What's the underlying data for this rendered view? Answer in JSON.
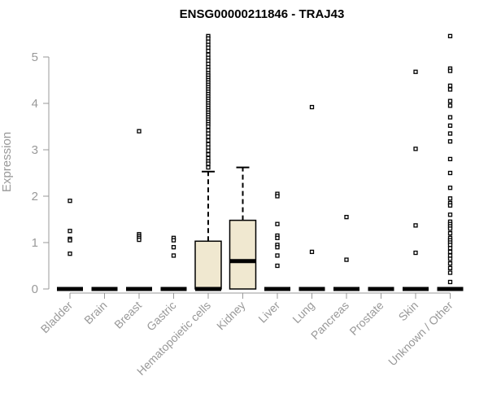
{
  "chart_data": {
    "type": "box",
    "title": "ENSG00000211846 - TRAJ43",
    "xlabel": "",
    "ylabel": "Expression",
    "ylim": [
      0,
      5.5
    ],
    "yticks": [
      0,
      1,
      2,
      3,
      4,
      5
    ],
    "grid": false,
    "legend": "none",
    "box_fill": "#f0e8d0",
    "categories": [
      "Bladder",
      "Brain",
      "Breast",
      "Gastric",
      "Hematopoietic cells",
      "Kidney",
      "Liver",
      "Lung",
      "Pancreas",
      "Prostate",
      "Skin",
      "Unknown / Other"
    ],
    "boxes": [
      {
        "category": "Bladder",
        "min": 0,
        "q1": 0,
        "median": 0,
        "q3": 0,
        "max": 0,
        "outliers": [
          1.9,
          1.25,
          1.08,
          1.05,
          0.76
        ]
      },
      {
        "category": "Brain",
        "min": 0,
        "q1": 0,
        "median": 0,
        "q3": 0,
        "max": 0,
        "outliers": []
      },
      {
        "category": "Breast",
        "min": 0,
        "q1": 0,
        "median": 0,
        "q3": 0,
        "max": 0,
        "outliers": [
          3.4,
          1.18,
          1.14,
          1.1,
          1.06
        ]
      },
      {
        "category": "Gastric",
        "min": 0,
        "q1": 0,
        "median": 0,
        "q3": 0,
        "max": 0,
        "outliers": [
          1.1,
          1.05,
          0.9,
          0.72
        ]
      },
      {
        "category": "Hematopoietic cells",
        "min": 0,
        "q1": 0,
        "median": 0,
        "q3": 1.03,
        "max": 2.53,
        "outliers": [
          5.45,
          5.4,
          5.33,
          5.26,
          5.2,
          5.13,
          5.05,
          4.98,
          4.92,
          4.85,
          4.78,
          4.72,
          4.65,
          4.6,
          4.55,
          4.5,
          4.45,
          4.4,
          4.35,
          4.3,
          4.25,
          4.2,
          4.15,
          4.1,
          4.05,
          4.0,
          3.95,
          3.9,
          3.85,
          3.8,
          3.75,
          3.7,
          3.65,
          3.6,
          3.55,
          3.5,
          3.42,
          3.35,
          3.28,
          3.2,
          3.12,
          3.05,
          2.98,
          2.9,
          2.82,
          2.75,
          2.7,
          2.62
        ]
      },
      {
        "category": "Kidney",
        "min": 0,
        "q1": 0,
        "median": 0.6,
        "q3": 1.48,
        "max": 2.62,
        "outliers": []
      },
      {
        "category": "Liver",
        "min": 0,
        "q1": 0,
        "median": 0,
        "q3": 0,
        "max": 0,
        "outliers": [
          2.05,
          2.0,
          1.4,
          1.15,
          1.1,
          0.95,
          0.9,
          0.72,
          0.5
        ]
      },
      {
        "category": "Lung",
        "min": 0,
        "q1": 0,
        "median": 0,
        "q3": 0,
        "max": 0,
        "outliers": [
          3.92,
          0.8
        ]
      },
      {
        "category": "Pancreas",
        "min": 0,
        "q1": 0,
        "median": 0,
        "q3": 0,
        "max": 0,
        "outliers": [
          1.55,
          0.63
        ]
      },
      {
        "category": "Prostate",
        "min": 0,
        "q1": 0,
        "median": 0,
        "q3": 0,
        "max": 0,
        "outliers": []
      },
      {
        "category": "Skin",
        "min": 0,
        "q1": 0,
        "median": 0,
        "q3": 0,
        "max": 0,
        "outliers": [
          4.68,
          3.02,
          1.37,
          0.78
        ]
      },
      {
        "category": "Unknown / Other",
        "min": 0,
        "q1": 0,
        "median": 0,
        "q3": 0,
        "max": 0,
        "outliers": [
          5.45,
          4.75,
          4.7,
          4.38,
          4.3,
          4.05,
          3.95,
          3.7,
          3.52,
          3.35,
          3.18,
          2.8,
          2.5,
          2.18,
          1.95,
          1.85,
          1.8,
          1.6,
          1.45,
          1.4,
          1.35,
          1.3,
          1.2,
          1.1,
          1.05,
          1.0,
          0.95,
          0.88,
          0.8,
          0.72,
          0.65,
          0.55,
          0.45,
          0.35,
          0.15
        ]
      }
    ]
  }
}
